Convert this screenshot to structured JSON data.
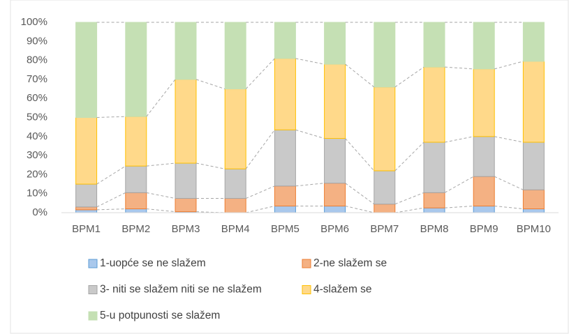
{
  "chart_data": {
    "type": "stacked_bar_100",
    "categories": [
      "BPM1",
      "BPM2",
      "BPM3",
      "BPM4",
      "BPM5",
      "BPM6",
      "BPM7",
      "BPM8",
      "BPM9",
      "BPM10"
    ],
    "series": [
      {
        "name": "1-uopće se ne slažem",
        "color": "#a9c8ec",
        "values": [
          1.5,
          2,
          0.5,
          0,
          3.5,
          3.5,
          0,
          2.5,
          3.5,
          2
        ]
      },
      {
        "name": "2-ne slažem se",
        "color": "#f4b183",
        "values": [
          1.5,
          8.5,
          7,
          7.5,
          10.5,
          12,
          4.5,
          8,
          15.5,
          10
        ]
      },
      {
        "name": "3- niti se slažem niti se ne slažem",
        "color": "#c9c9c9",
        "values": [
          12,
          14,
          18.5,
          15.5,
          29.5,
          23.5,
          17.5,
          26.5,
          21,
          25
        ]
      },
      {
        "name": "4-slažem se",
        "color": "#ffd98a",
        "values": [
          35,
          26,
          44,
          42,
          37.5,
          39,
          44,
          39.5,
          35.5,
          42.5
        ]
      },
      {
        "name": "5-u potpunosti se slažem",
        "color": "#c5e0b4",
        "values": [
          50,
          49.5,
          30,
          35,
          19,
          22,
          34,
          23.5,
          24.5,
          20.5
        ]
      }
    ],
    "ylim": [
      0,
      100
    ],
    "yticks": [
      {
        "value": 0,
        "label": "0%"
      },
      {
        "value": 10,
        "label": "10%"
      },
      {
        "value": 20,
        "label": "20%"
      },
      {
        "value": 30,
        "label": "30%"
      },
      {
        "value": 40,
        "label": "40%"
      },
      {
        "value": 50,
        "label": "50%"
      },
      {
        "value": 60,
        "label": "60%"
      },
      {
        "value": 70,
        "label": "70%"
      },
      {
        "value": 80,
        "label": "80%"
      },
      {
        "value": 90,
        "label": "90%"
      },
      {
        "value": 100,
        "label": "100%"
      }
    ],
    "grid": false
  }
}
